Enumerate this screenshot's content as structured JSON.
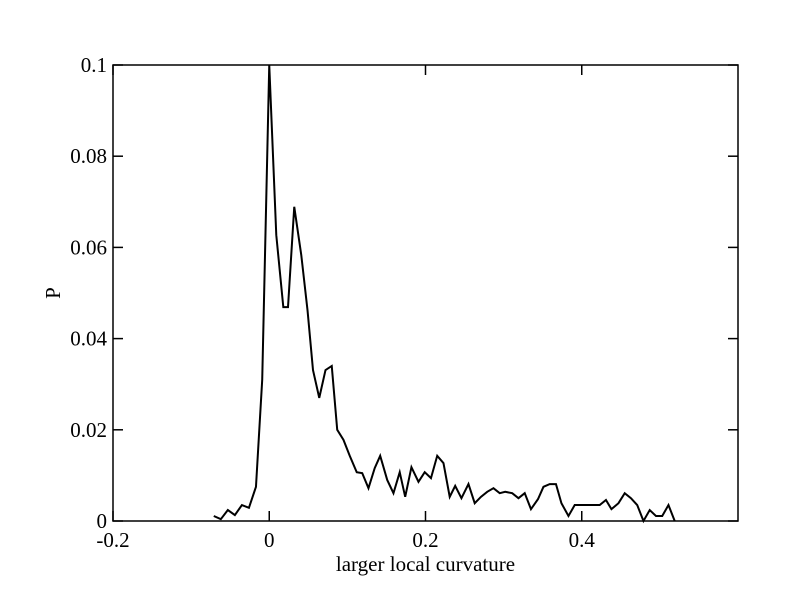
{
  "chart_data": {
    "type": "line",
    "x_label": "larger local curvature",
    "y_label": "P",
    "xlim": [
      -0.2,
      0.6
    ],
    "xticks": [
      -0.2,
      0,
      0.2,
      0.4
    ],
    "ylim": [
      0,
      0.1
    ],
    "yticks": [
      0,
      0.02,
      0.04,
      0.06,
      0.08,
      0.1
    ],
    "grid": false,
    "series": [
      {
        "color": "#000000",
        "x": [
          -0.071,
          -0.062,
          -0.053,
          -0.044,
          -0.035,
          -0.026,
          -0.017,
          -0.009,
          0,
          0.009,
          0.018,
          0.024,
          0.032,
          0.041,
          0.049,
          0.056,
          0.064,
          0.072,
          0.08,
          0.087,
          0.095,
          0.103,
          0.112,
          0.119,
          0.127,
          0.135,
          0.142,
          0.151,
          0.159,
          0.167,
          0.174,
          0.182,
          0.191,
          0.199,
          0.207,
          0.215,
          0.223,
          0.231,
          0.238,
          0.246,
          0.255,
          0.263,
          0.271,
          0.279,
          0.287,
          0.295,
          0.302,
          0.311,
          0.319,
          0.327,
          0.335,
          0.344,
          0.351,
          0.359,
          0.367,
          0.374,
          0.383,
          0.391,
          0.399,
          0.407,
          0.415,
          0.423,
          0.431,
          0.438,
          0.447,
          0.455,
          0.463,
          0.471,
          0.479,
          0.487,
          0.495,
          0.503,
          0.511,
          0.519
        ],
        "values": [
          0.0011,
          0.0004,
          0.0024,
          0.0013,
          0.0035,
          0.0029,
          0.0075,
          0.031,
          0.1,
          0.0627,
          0.0469,
          0.0469,
          0.0689,
          0.0583,
          0.0462,
          0.0331,
          0.027,
          0.0331,
          0.034,
          0.02,
          0.0178,
          0.0143,
          0.0107,
          0.0105,
          0.0072,
          0.0116,
          0.0143,
          0.009,
          0.0061,
          0.0107,
          0.0053,
          0.0118,
          0.0086,
          0.0107,
          0.0094,
          0.0143,
          0.0127,
          0.0053,
          0.0077,
          0.005,
          0.0081,
          0.0039,
          0.0053,
          0.0064,
          0.0072,
          0.0061,
          0.0064,
          0.0061,
          0.005,
          0.0061,
          0.0026,
          0.0048,
          0.0075,
          0.0081,
          0.0081,
          0.0039,
          0.0011,
          0.0035,
          0.0035,
          0.0035,
          0.0035,
          0.0035,
          0.0046,
          0.0026,
          0.0039,
          0.0061,
          0.005,
          0.0035,
          0,
          0.0024,
          0.0011,
          0.0011,
          0.0035,
          0
        ]
      }
    ]
  }
}
